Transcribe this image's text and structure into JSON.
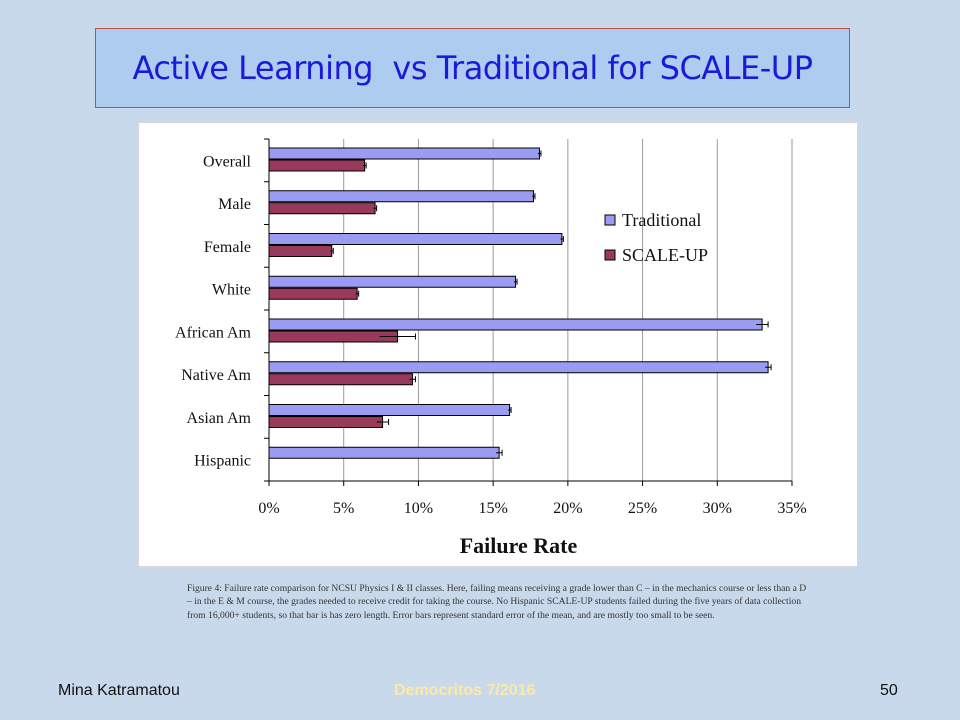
{
  "slide": {
    "title": "Active Learning  vs Traditional for SCALE-UP",
    "caption": "Figure 4: Failure rate comparison for NCSU Physics I & II classes.  Here, failing means receiving a grade lower than C – in the mechanics course or less than a D – in the E & M course, the grades needed to receive credit for taking the course. No Hispanic SCALE-UP students failed during the five years of data collection from 16,000+ students, so that bar is has zero length.  Error bars represent standard error of the mean, and are mostly too small to be seen.",
    "footer_left": "Mina Katramatou",
    "footer_center": "Democritos  7/2016",
    "footer_right": "50"
  },
  "colors": {
    "traditional": "#9a9cf4",
    "scaleup": "#993a5c",
    "grid": "#9a9a9a",
    "title_text": "#1a1ad8",
    "title_box": "#aecbf0",
    "background": "#c9d9ec"
  },
  "chart_data": {
    "type": "bar",
    "orientation": "horizontal",
    "title": "",
    "xlabel": "Failure Rate",
    "ylabel": "",
    "xlim": [
      0,
      35
    ],
    "xticks": [
      0,
      5,
      10,
      15,
      20,
      25,
      30,
      35
    ],
    "xtick_labels": [
      "0%",
      "5%",
      "10%",
      "15%",
      "20%",
      "25%",
      "30%",
      "35%"
    ],
    "grid": "vertical",
    "legend_position": "top-right",
    "categories": [
      "Overall",
      "Male",
      "Female",
      "White",
      "African Am",
      "Native Am",
      "Asian Am",
      "Hispanic"
    ],
    "series": [
      {
        "name": "Traditional",
        "values": [
          18.1,
          17.7,
          19.6,
          16.5,
          33.0,
          33.4,
          16.1,
          15.4
        ],
        "errors": [
          0.1,
          0.1,
          0.1,
          0.1,
          0.4,
          0.2,
          0.1,
          0.2
        ]
      },
      {
        "name": "SCALE-UP",
        "values": [
          6.4,
          7.1,
          4.2,
          5.9,
          8.6,
          9.6,
          7.6,
          0
        ],
        "errors": [
          0.1,
          0.1,
          0.1,
          0.1,
          1.2,
          0.2,
          0.4,
          0
        ]
      }
    ]
  }
}
